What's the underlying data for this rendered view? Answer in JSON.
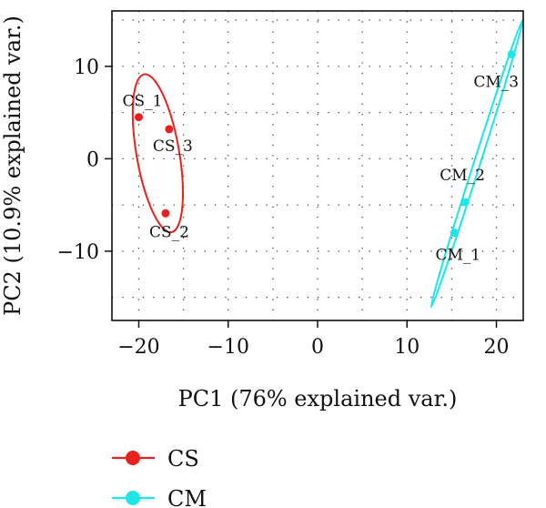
{
  "chart_data": {
    "type": "scatter",
    "xlabel": "PC1 (76% explained var.)",
    "ylabel": "PC2 (10.9% explained var.)",
    "xlim": [
      -23,
      23
    ],
    "ylim": [
      -17.5,
      16
    ],
    "xticks": [
      -20,
      -10,
      0,
      10,
      20
    ],
    "yticks": [
      -10,
      0,
      10
    ],
    "xtick_labels": [
      "−20",
      "−10",
      "0",
      "10",
      "20"
    ],
    "ytick_labels": [
      "−10",
      "0",
      "10"
    ],
    "grid": true,
    "legend_position": "bottom-left",
    "series": [
      {
        "name": "CS",
        "color": "#e8211d",
        "points": [
          {
            "label": "CS_1",
            "x": -20.0,
            "y": 4.5
          },
          {
            "label": "CS_2",
            "x": -17.0,
            "y": -5.9
          },
          {
            "label": "CS_3",
            "x": -16.6,
            "y": 3.2
          }
        ]
      },
      {
        "name": "CM",
        "color": "#1de5e8",
        "points": [
          {
            "label": "CM_1",
            "x": 15.3,
            "y": -8.0
          },
          {
            "label": "CM_2",
            "x": 16.5,
            "y": -4.7
          },
          {
            "label": "CM_3",
            "x": 21.7,
            "y": 11.3
          }
        ]
      }
    ]
  }
}
